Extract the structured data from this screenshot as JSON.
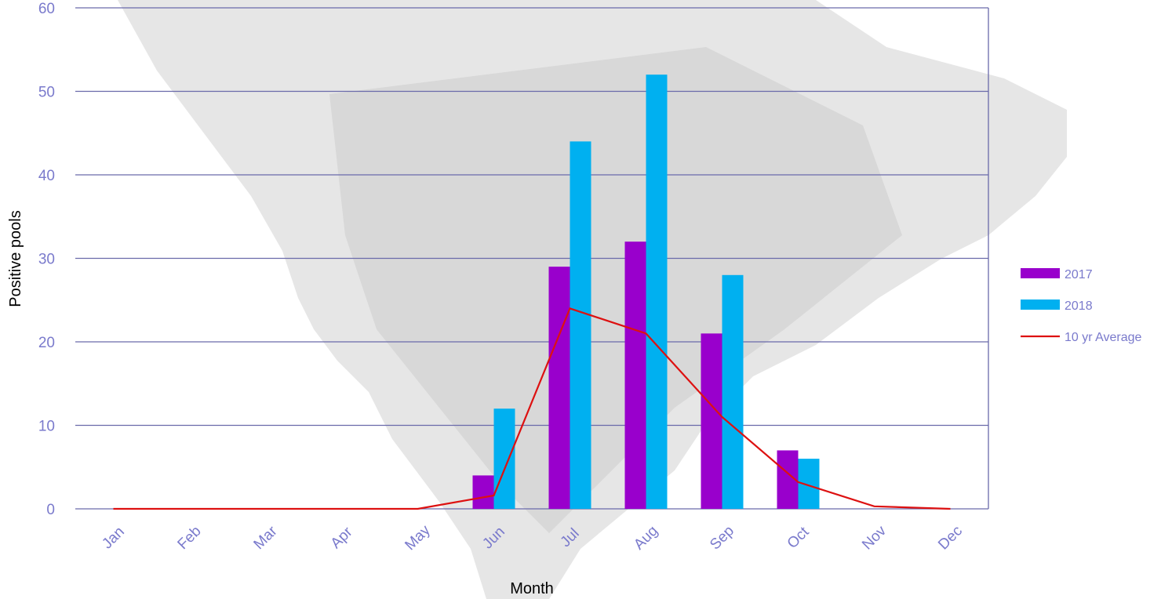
{
  "chart_data": {
    "type": "bar",
    "categories": [
      "Jan",
      "Feb",
      "Mar",
      "Apr",
      "May",
      "Jun",
      "Jul",
      "Aug",
      "Sep",
      "Oct",
      "Nov",
      "Dec"
    ],
    "series": [
      {
        "name": "2017",
        "kind": "bar",
        "color": "#9900cc",
        "values": [
          0,
          0,
          0,
          0,
          0,
          4,
          29,
          32,
          21,
          7,
          0,
          0
        ]
      },
      {
        "name": "2018",
        "kind": "bar",
        "color": "#00b0f0",
        "values": [
          0,
          0,
          0,
          0,
          0,
          12,
          44,
          52,
          28,
          6,
          0,
          0
        ]
      },
      {
        "name": "10 yr Average",
        "kind": "line",
        "color": "#dd1111",
        "values": [
          0,
          0,
          0,
          0,
          0,
          1.6,
          24,
          21,
          11,
          3.2,
          0.3,
          0
        ]
      }
    ],
    "title": "",
    "xlabel": "Month",
    "ylabel": "Positive pools",
    "ylim": [
      0,
      60
    ],
    "yticks": [
      0,
      10,
      20,
      30,
      40,
      50,
      60
    ],
    "grid": true,
    "legend_position": "right",
    "colors": {
      "grid": "#6a6aaa",
      "text": "#7a7acc",
      "axis_title": "#8080d0"
    }
  }
}
